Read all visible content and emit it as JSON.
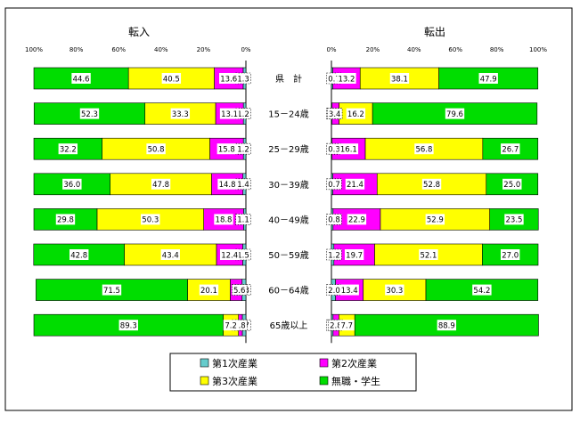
{
  "chart_data": {
    "type": "bar",
    "stacked": true,
    "orientation": "horizontal",
    "categories": [
      "県　計",
      "15－24歳",
      "25－29歳",
      "30－39歳",
      "40－49歳",
      "50－59歳",
      "60－64歳",
      "65歳以上"
    ],
    "series_legend": [
      {
        "name": "第1次産業",
        "color": "#66CCCC"
      },
      {
        "name": "第2次産業",
        "color": "#FF00FF"
      },
      {
        "name": "第3次産業",
        "color": "#FFFF00"
      },
      {
        "name": "無職・学生",
        "color": "#00DD00"
      }
    ],
    "panels": [
      {
        "title": "転入",
        "direction": "right-to-left",
        "xlim": [
          0,
          100
        ],
        "ticks": [
          "100%",
          "80%",
          "60%",
          "40%",
          "20%",
          "0%"
        ],
        "series": [
          {
            "name": "第1次産業",
            "values": [
              1.3,
              1.2,
              1.2,
              1.4,
              1.1,
              1.5,
              1.8,
              1.7
            ]
          },
          {
            "name": "第2次産業",
            "values": [
              13.6,
              13.1,
              15.8,
              14.8,
              18.8,
              12.4,
              5.6,
              1.8
            ]
          },
          {
            "name": "第3次産業",
            "values": [
              40.5,
              33.3,
              50.8,
              47.8,
              50.3,
              43.4,
              20.1,
              7.2
            ]
          },
          {
            "name": "無職・学生",
            "values": [
              44.6,
              52.3,
              32.2,
              36.0,
              29.8,
              42.8,
              71.5,
              89.3
            ]
          }
        ],
        "labels": [
          [
            "1.3",
            "13.6",
            "40.5",
            "44.6"
          ],
          [
            "1.2",
            "13.1",
            "33.3",
            "52.3"
          ],
          [
            "1.2",
            "15.8",
            "50.8",
            "32.2"
          ],
          [
            "1.4",
            "14.8",
            "47.8",
            "36.0"
          ],
          [
            "1.1",
            "18.8",
            "50.3",
            "29.8"
          ],
          [
            "1.5",
            "12.4",
            "43.4",
            "42.8"
          ],
          [
            "1.8",
            "5.6",
            "20.1",
            "71.5"
          ],
          [
            "1.7",
            "1.8",
            "7.2",
            "89.3"
          ]
        ]
      },
      {
        "title": "転出",
        "direction": "left-to-right",
        "xlim": [
          0,
          100
        ],
        "ticks": [
          "0%",
          "20%",
          "40%",
          "60%",
          "80%",
          "100%"
        ],
        "series": [
          {
            "name": "第1次産業",
            "values": [
              0.7,
              0.3,
              0.3,
              0.7,
              0.8,
              1.2,
              2.0,
              0.8
            ]
          },
          {
            "name": "第2次産業",
            "values": [
              13.2,
              3.4,
              16.1,
              21.4,
              22.9,
              19.7,
              13.4,
              2.8
            ]
          },
          {
            "name": "第3次産業",
            "values": [
              38.1,
              16.2,
              56.8,
              52.8,
              52.9,
              52.1,
              30.3,
              7.7
            ]
          },
          {
            "name": "無職・学生",
            "values": [
              47.9,
              79.6,
              26.7,
              25.0,
              23.5,
              27.0,
              54.2,
              88.9
            ]
          }
        ],
        "labels": [
          [
            "0.7",
            "13.2",
            "38.1",
            "47.9"
          ],
          [
            "0.3",
            "3.4",
            "16.2",
            "79.6"
          ],
          [
            "0.3",
            "16.1",
            "56.8",
            "26.7"
          ],
          [
            "0.7",
            "21.4",
            "52.8",
            "25.0"
          ],
          [
            "0.8",
            "22.9",
            "52.9",
            "23.5"
          ],
          [
            "1.2",
            "19.7",
            "52.1",
            "27.0"
          ],
          [
            "2.0",
            "13.4",
            "30.3",
            "54.2"
          ],
          [
            "0.8",
            "2.8",
            "7.7",
            "88.9"
          ]
        ]
      }
    ],
    "grid": false,
    "legend_position": "bottom"
  }
}
